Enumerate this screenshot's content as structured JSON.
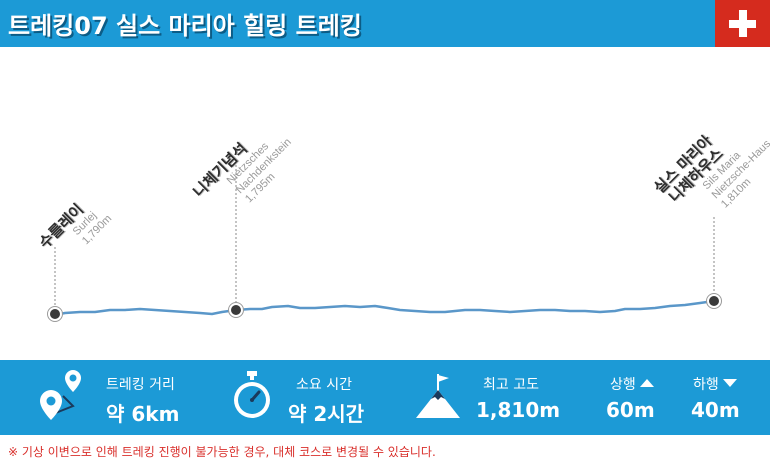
{
  "header": {
    "title": "트레킹07 실스 마리아 힐링 트레킹",
    "flag_icon": "swiss-flag-icon"
  },
  "points": [
    {
      "name": "수를레이",
      "latin": "Surlej",
      "elevation": "1,790m"
    },
    {
      "name": "니체기념석",
      "latin_1": "Nietzsches",
      "latin_2": "Nachdenkstein",
      "elevation": "1,795m"
    },
    {
      "name_1": "실스 마리아",
      "name_2": "니체하우스",
      "latin_1": "Sils Maria",
      "latin_2": "Nietzsche-Haus",
      "elevation": "1,810m"
    }
  ],
  "stats": {
    "distance": {
      "label": "트레킹 거리",
      "value": "약 6km",
      "icon": "route-pin-icon"
    },
    "duration": {
      "label": "소요 시간",
      "value": "약 2시간",
      "icon": "stopwatch-icon"
    },
    "altitude": {
      "label": "최고 고도",
      "value": "1,810m",
      "icon": "mountain-flag-icon"
    },
    "ascent": {
      "label": "상행",
      "value": "60m",
      "icon": "arrow-up-icon"
    },
    "descent": {
      "label": "하행",
      "value": "40m",
      "icon": "arrow-down-icon"
    }
  },
  "note": "※ 기상 이변으로 인해 트레킹 진행이 불가능한 경우, 대체 코스로 변경될 수 있습니다.",
  "colors": {
    "header": "#1c9ad6",
    "flag": "#d52b1e",
    "profile_line": "#5a97c9",
    "note": "#d9302c"
  }
}
